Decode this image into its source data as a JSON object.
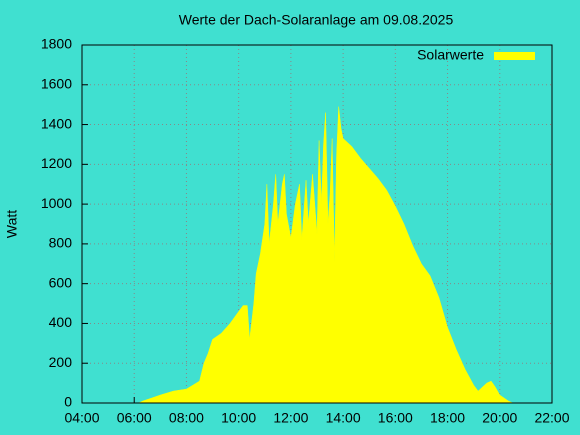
{
  "chart_data": {
    "type": "area",
    "title": "Werte der Dach-Solaranlage am 09.08.2025",
    "ylabel": "Watt",
    "x": [
      6.17,
      6.33,
      6.67,
      7.0,
      7.5,
      8.0,
      8.5,
      8.67,
      8.83,
      9.0,
      9.33,
      9.67,
      10.0,
      10.17,
      10.33,
      10.42,
      10.58,
      10.67,
      10.83,
      11.0,
      11.08,
      11.17,
      11.33,
      11.42,
      11.5,
      11.67,
      11.75,
      11.83,
      12.0,
      12.17,
      12.33,
      12.42,
      12.58,
      12.67,
      12.83,
      13.0,
      13.08,
      13.17,
      13.25,
      13.33,
      13.42,
      13.5,
      13.58,
      13.67,
      13.75,
      13.83,
      13.92,
      14.0,
      14.33,
      14.67,
      15.0,
      15.33,
      15.67,
      16.0,
      16.33,
      16.67,
      17.0,
      17.33,
      17.67,
      18.0,
      18.33,
      18.67,
      19.0,
      19.17,
      19.5,
      19.67,
      19.83,
      20.0,
      20.33,
      20.5
    ],
    "series": [
      {
        "name": "Solarwerte",
        "color": "#ffff00",
        "values": [
          0,
          10,
          25,
          40,
          60,
          70,
          110,
          200,
          250,
          320,
          350,
          400,
          460,
          490,
          490,
          320,
          500,
          650,
          750,
          900,
          1100,
          800,
          1000,
          1150,
          900,
          1100,
          1150,
          950,
          830,
          1000,
          1100,
          820,
          1120,
          900,
          1150,
          850,
          1320,
          1000,
          1300,
          1460,
          900,
          1050,
          1330,
          710,
          1250,
          1490,
          1380,
          1330,
          1290,
          1230,
          1180,
          1130,
          1070,
          990,
          900,
          790,
          700,
          640,
          530,
          380,
          270,
          170,
          90,
          60,
          100,
          110,
          80,
          40,
          10,
          0
        ]
      }
    ],
    "xlim": [
      4,
      22
    ],
    "xticks": [
      {
        "value": 4,
        "label": "04:00"
      },
      {
        "value": 6,
        "label": "06:00"
      },
      {
        "value": 8,
        "label": "08:00"
      },
      {
        "value": 10,
        "label": "10:00"
      },
      {
        "value": 12,
        "label": "12:00"
      },
      {
        "value": 14,
        "label": "14:00"
      },
      {
        "value": 16,
        "label": "16:00"
      },
      {
        "value": 18,
        "label": "18:00"
      },
      {
        "value": 20,
        "label": "20:00"
      },
      {
        "value": 22,
        "label": "22:00"
      }
    ],
    "ylim": [
      0,
      1800
    ],
    "yticks": [
      0,
      200,
      400,
      600,
      800,
      1000,
      1200,
      1400,
      1600,
      1800
    ],
    "grid": true,
    "legend": "top-right"
  }
}
